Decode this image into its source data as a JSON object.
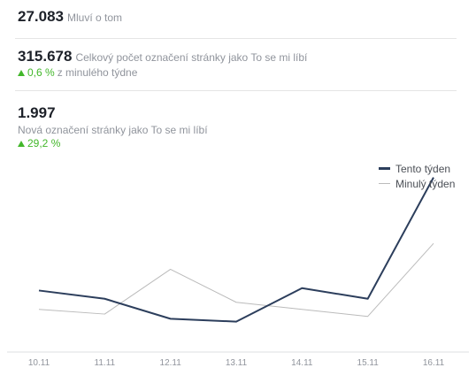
{
  "stats": {
    "talking_about": {
      "value": "27.083",
      "label": "Mluví o tom"
    },
    "total_likes": {
      "value": "315.678",
      "label": "Celkový počet označení stránky jako To se mi líbí",
      "change": "0,6 %",
      "change_suffix": "z minulého týdne"
    },
    "new_likes": {
      "value": "1.997",
      "label": "Nová označení stránky jako To se mi líbí",
      "change": "29,2 %"
    }
  },
  "legend": {
    "this_week": "Tento týden",
    "last_week": "Minulý týden"
  },
  "colors": {
    "this_week_line": "#2c3e5c",
    "last_week_line": "#bbbbbb",
    "positive": "#42b72a",
    "muted_text": "#90949c"
  },
  "icons": {
    "change_up": "triangle-up-icon"
  },
  "chart_data": {
    "type": "line",
    "categories": [
      "10.11",
      "11.11",
      "12.11",
      "13.11",
      "14.11",
      "15.11",
      "16.11"
    ],
    "series": [
      {
        "name": "Tento týden",
        "values": [
          250,
          215,
          130,
          118,
          260,
          215,
          730
        ]
      },
      {
        "name": "Minulý týden",
        "values": [
          170,
          150,
          340,
          200,
          170,
          140,
          450
        ]
      }
    ],
    "ylim": [
      0,
      800
    ],
    "legend_position": "top-right",
    "grid": false
  }
}
